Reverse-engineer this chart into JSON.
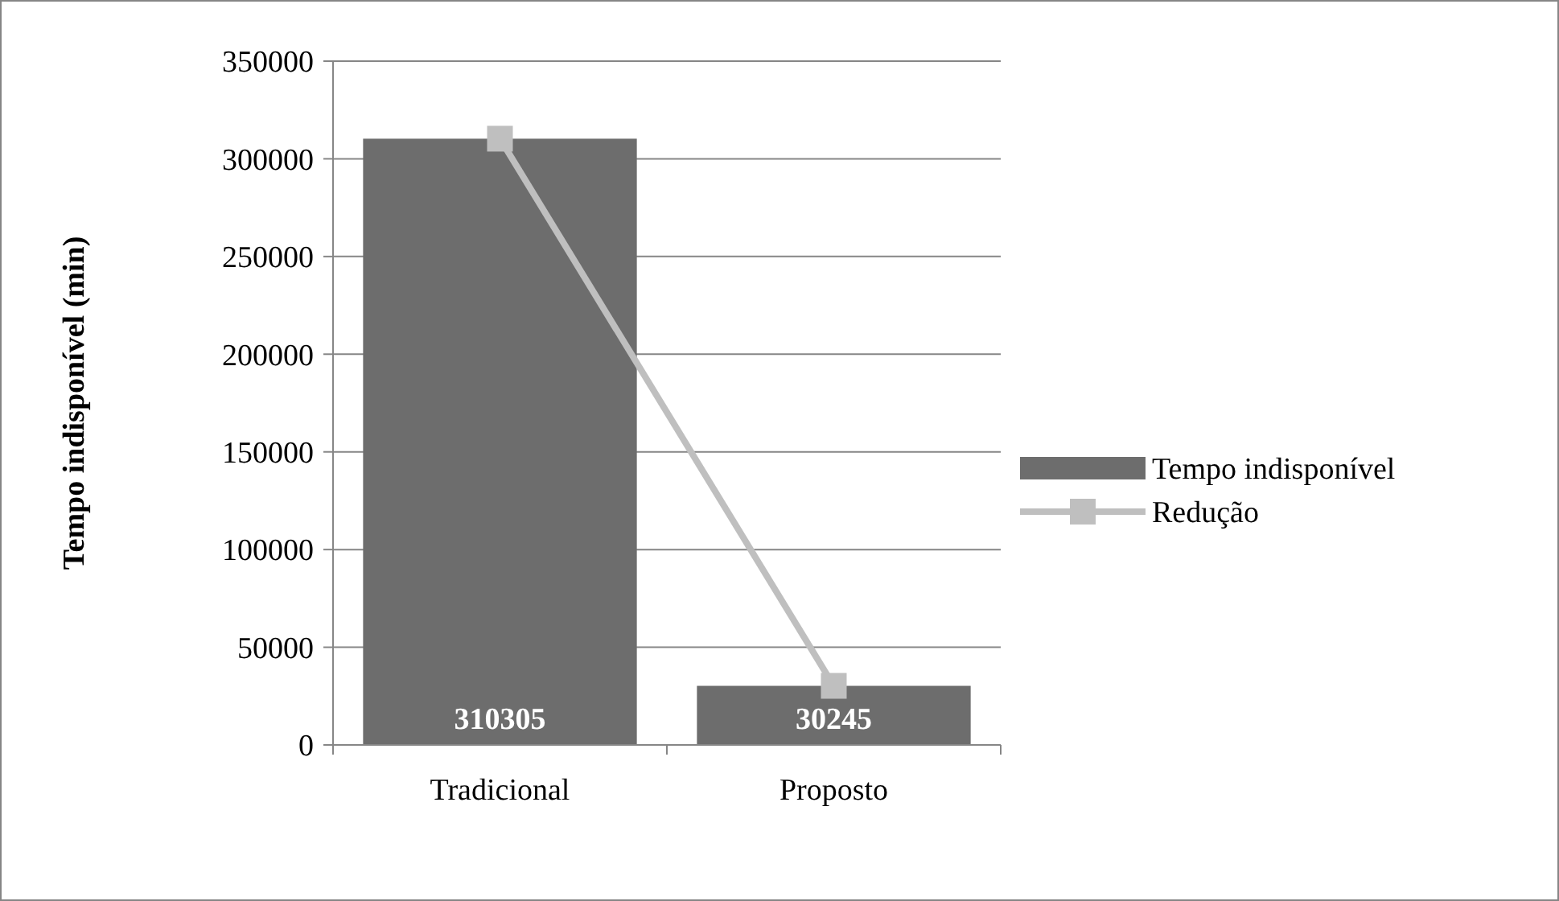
{
  "chart_data": {
    "type": "bar",
    "ylabel": "Tempo indisponível (min)",
    "categories": [
      "Tradicional",
      "Proposto"
    ],
    "series": [
      {
        "name": "Tempo indisponível",
        "color": "#6d6d6d",
        "values": [
          310305,
          30245
        ],
        "value_labels": [
          "310305",
          "30245"
        ]
      },
      {
        "name": "Redução",
        "type": "line",
        "color": "#bfbfbf",
        "values": [
          310305,
          30245
        ],
        "marker": "square"
      }
    ],
    "ylim": [
      0,
      350000
    ],
    "yticks": [
      0,
      50000,
      100000,
      150000,
      200000,
      250000,
      300000,
      350000
    ],
    "grid": "y",
    "legend": "right"
  }
}
